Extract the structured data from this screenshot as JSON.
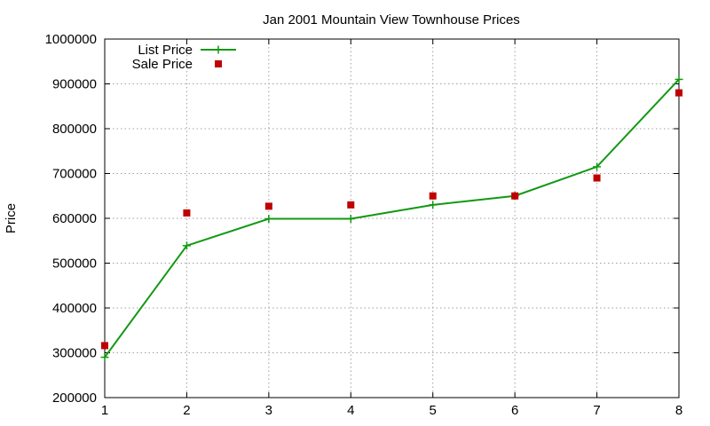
{
  "chart_data": {
    "type": "line",
    "title": "Jan 2001 Mountain View Townhouse Prices",
    "xlabel": "",
    "ylabel": "Price",
    "xlim": [
      1,
      8
    ],
    "ylim": [
      200000,
      1000000
    ],
    "x_ticks": [
      "1",
      "2",
      "3",
      "4",
      "5",
      "6",
      "7",
      "8"
    ],
    "y_ticks": [
      "200000",
      "300000",
      "400000",
      "500000",
      "600000",
      "700000",
      "800000",
      "900000",
      "1000000"
    ],
    "grid": true,
    "legend_position": "top-left",
    "series": [
      {
        "name": "List Price",
        "style": "line-points",
        "marker": "plus",
        "color": "#119911",
        "x": [
          1,
          2,
          3,
          4,
          5,
          6,
          7,
          8
        ],
        "values": [
          290000,
          539000,
          599000,
          599000,
          630000,
          650000,
          715000,
          910000
        ]
      },
      {
        "name": "Sale Price",
        "style": "points",
        "marker": "square",
        "color": "#c00000",
        "x": [
          1,
          2,
          3,
          4,
          5,
          6,
          7,
          8
        ],
        "values": [
          316000,
          612000,
          627000,
          630000,
          650000,
          650000,
          690000,
          880000
        ]
      }
    ]
  }
}
